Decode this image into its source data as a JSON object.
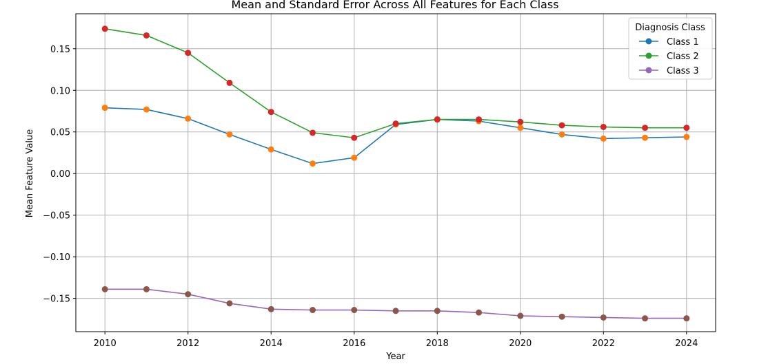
{
  "chart_data": {
    "type": "line",
    "title": "Mean and Standard Error Across All Features for Each Class",
    "xlabel": "Year",
    "ylabel": "Mean Feature Value",
    "x": [
      2010,
      2011,
      2012,
      2013,
      2014,
      2015,
      2016,
      2017,
      2018,
      2019,
      2020,
      2021,
      2022,
      2023,
      2024
    ],
    "x_ticks": [
      "2010",
      "2012",
      "2014",
      "2016",
      "2018",
      "2020",
      "2022",
      "2024"
    ],
    "y_ticks": [
      "0.15",
      "0.10",
      "0.05",
      "0.00",
      "−0.05",
      "−0.10",
      "−0.15"
    ],
    "xlim": [
      2009.3,
      2024.7
    ],
    "ylim": [
      -0.19,
      0.192
    ],
    "grid": true,
    "legend": {
      "title": "Diagnosis Class",
      "placement": "top-right"
    },
    "series": [
      {
        "name": "Class 1",
        "line_color": "#1f77b4",
        "marker_color": "#ff7f0e",
        "values": [
          0.079,
          0.077,
          0.066,
          0.047,
          0.029,
          0.012,
          0.019,
          0.059,
          0.065,
          0.063,
          0.055,
          0.047,
          0.042,
          0.043,
          0.044
        ]
      },
      {
        "name": "Class 2",
        "line_color": "#2ca02c",
        "marker_color": "#d62728",
        "values": [
          0.174,
          0.166,
          0.145,
          0.109,
          0.074,
          0.049,
          0.043,
          0.06,
          0.065,
          0.065,
          0.062,
          0.058,
          0.056,
          0.055,
          0.055
        ]
      },
      {
        "name": "Class 3",
        "line_color": "#9467bd",
        "marker_color": "#8c564b",
        "values": [
          -0.139,
          -0.139,
          -0.145,
          -0.156,
          -0.163,
          -0.164,
          -0.164,
          -0.165,
          -0.165,
          -0.167,
          -0.171,
          -0.172,
          -0.173,
          -0.174,
          -0.174
        ]
      }
    ]
  }
}
